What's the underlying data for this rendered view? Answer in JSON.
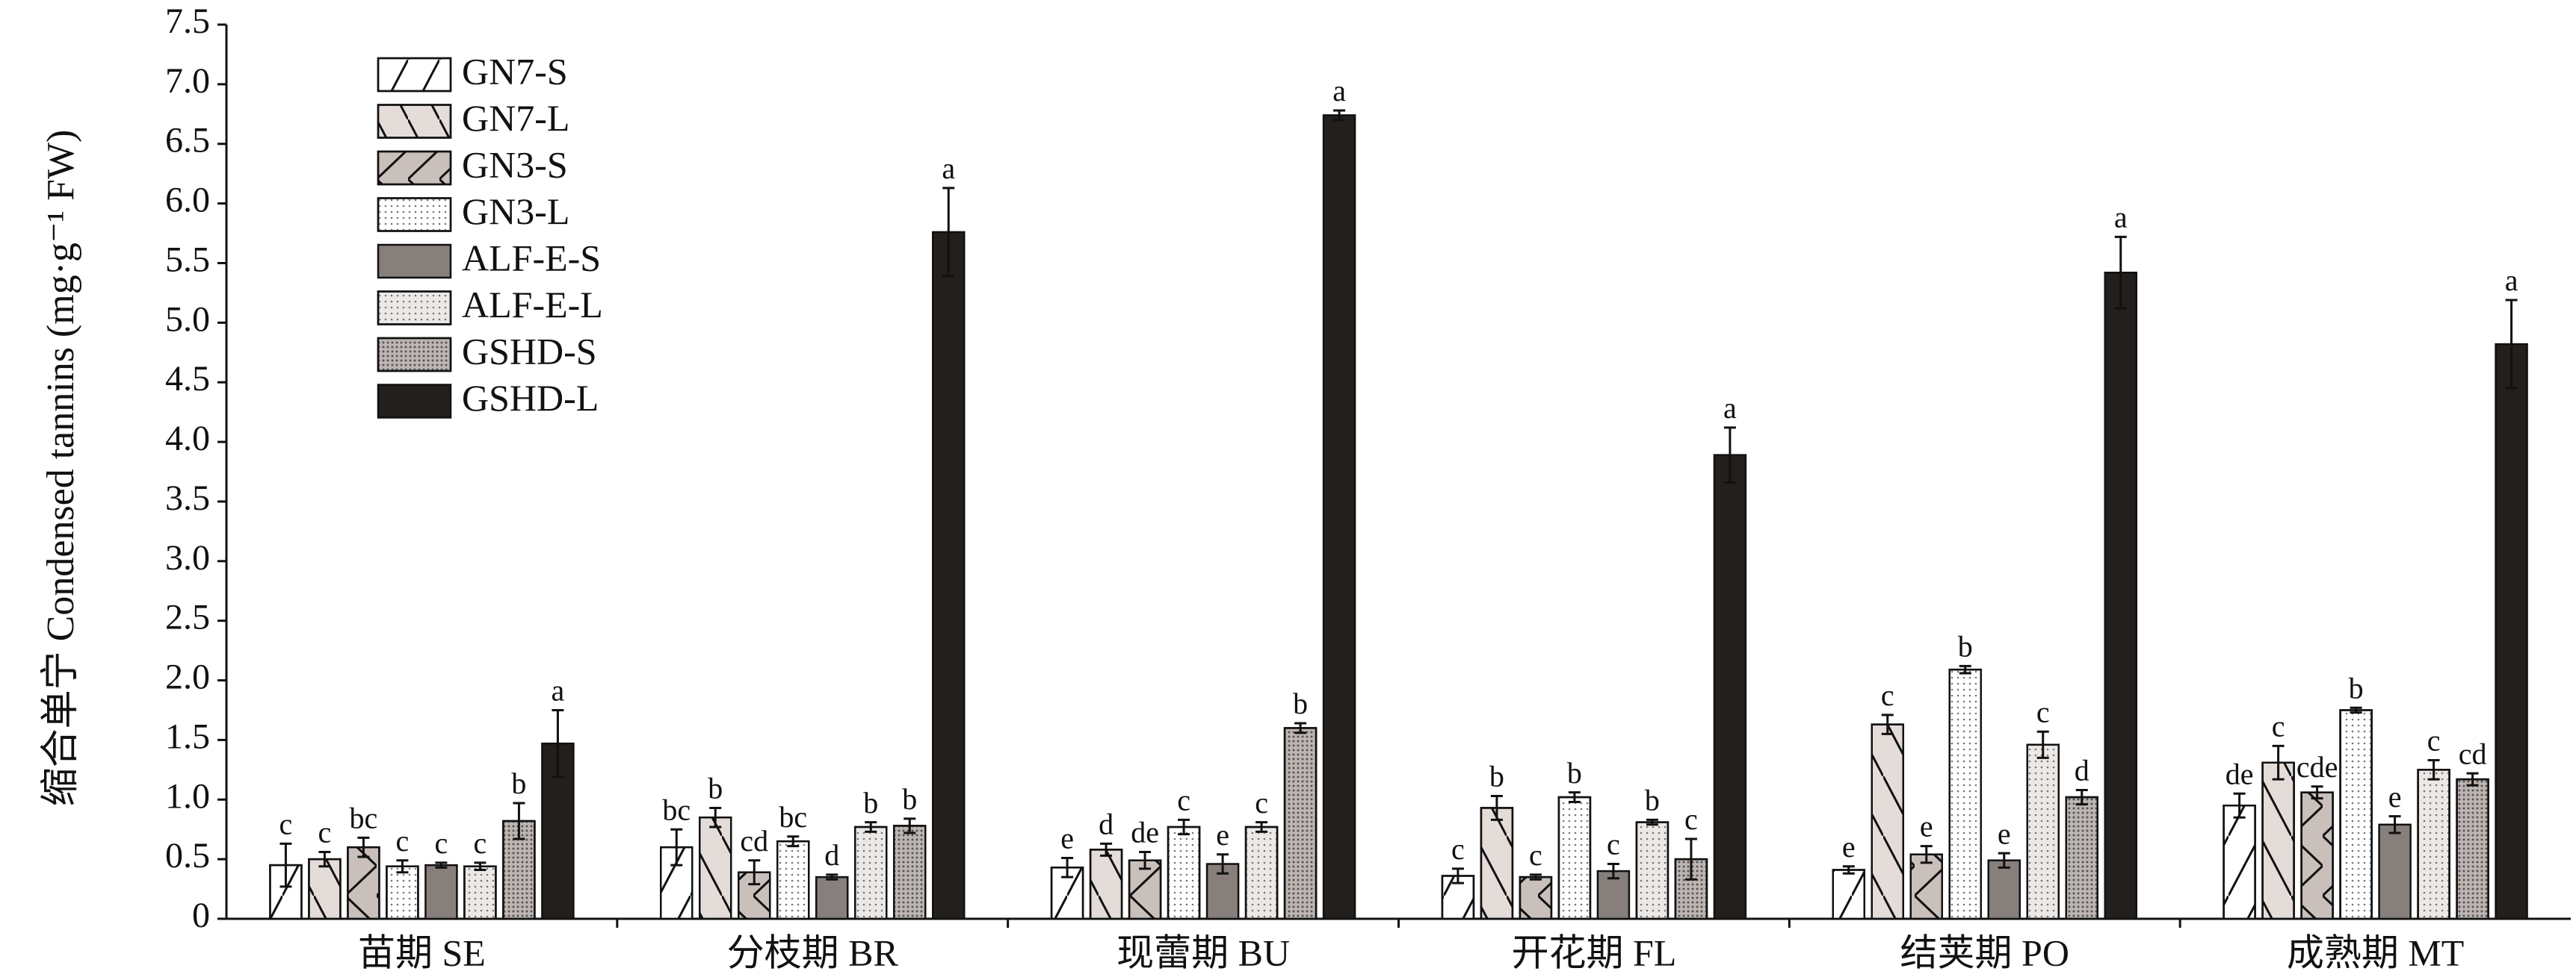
{
  "chart_data": {
    "type": "bar",
    "ylabel": "缩合单宁 Condensed tannins (mg·g⁻¹ FW)",
    "categories": [
      "苗期 SE",
      "分枝期 BR",
      "现蕾期 BU",
      "开花期 FL",
      "结荚期 PO",
      "成熟期 MT"
    ],
    "series": [
      {
        "name": "GN7-S",
        "color": "#ffffff",
        "hatch": "slash",
        "values": [
          0.45,
          0.6,
          0.43,
          0.36,
          0.41,
          0.95
        ],
        "errors": [
          0.18,
          0.15,
          0.08,
          0.06,
          0.03,
          0.1
        ],
        "labels": [
          "c",
          "bc",
          "e",
          "c",
          "e",
          "de"
        ]
      },
      {
        "name": "GN7-L",
        "color": "#e4dcd8",
        "hatch": "backslash",
        "values": [
          0.5,
          0.85,
          0.58,
          0.93,
          1.63,
          1.31
        ],
        "errors": [
          0.06,
          0.08,
          0.05,
          0.1,
          0.08,
          0.14
        ],
        "labels": [
          "c",
          "b",
          "d",
          "b",
          "c",
          "c"
        ]
      },
      {
        "name": "GN3-S",
        "color": "#c9c0bc",
        "hatch": "cross",
        "values": [
          0.6,
          0.39,
          0.49,
          0.35,
          0.54,
          1.06
        ],
        "errors": [
          0.08,
          0.1,
          0.07,
          0.02,
          0.07,
          0.05
        ],
        "labels": [
          "bc",
          "cd",
          "de",
          "c",
          "e",
          "cde"
        ]
      },
      {
        "name": "GN3-L",
        "color": "#ffffff",
        "hatch": "dots-light",
        "values": [
          0.44,
          0.65,
          0.77,
          1.02,
          2.09,
          1.75
        ],
        "errors": [
          0.05,
          0.04,
          0.06,
          0.04,
          0.03,
          0.02
        ],
        "labels": [
          "c",
          "bc",
          "c",
          "b",
          "b",
          "b"
        ]
      },
      {
        "name": "ALF-E-S",
        "color": "#867f7b",
        "values": [
          0.45,
          0.35,
          0.46,
          0.4,
          0.49,
          0.79
        ],
        "errors": [
          0.02,
          0.02,
          0.08,
          0.06,
          0.06,
          0.07
        ],
        "labels": [
          "c",
          "d",
          "e",
          "c",
          "e",
          "e"
        ]
      },
      {
        "name": "ALF-E-L",
        "color": "#ece8e6",
        "hatch": "dots-light",
        "values": [
          0.44,
          0.77,
          0.77,
          0.81,
          1.46,
          1.25
        ],
        "errors": [
          0.03,
          0.04,
          0.04,
          0.02,
          0.11,
          0.08
        ],
        "labels": [
          "c",
          "b",
          "c",
          "b",
          "c",
          "c"
        ]
      },
      {
        "name": "GSHD-S",
        "color": "#bdb5b1",
        "hatch": "dots-dense",
        "values": [
          0.82,
          0.78,
          1.6,
          0.5,
          1.02,
          1.17
        ],
        "errors": [
          0.15,
          0.06,
          0.04,
          0.17,
          0.06,
          0.05
        ],
        "labels": [
          "b",
          "b",
          "b",
          "c",
          "d",
          "cd"
        ]
      },
      {
        "name": "GSHD-L",
        "color": "#231f1c",
        "values": [
          1.47,
          5.76,
          6.74,
          3.89,
          5.42,
          4.82
        ],
        "errors": [
          0.28,
          0.37,
          0.04,
          0.23,
          0.3,
          0.37
        ],
        "labels": [
          "a",
          "a",
          "a",
          "a",
          "a",
          "a"
        ]
      }
    ],
    "ylim": [
      0,
      7.5
    ],
    "yticks": [
      0,
      0.5,
      {
        "value": 1,
        "label": "1.0"
      },
      1.5,
      {
        "value": 2,
        "label": "2.0"
      },
      2.5,
      {
        "value": 3,
        "label": "3.0"
      },
      3.5,
      {
        "value": 4,
        "label": "4.0"
      },
      4.5,
      {
        "value": 5,
        "label": "5.0"
      },
      5.5,
      {
        "value": 6,
        "label": "6.0"
      },
      6.5,
      {
        "value": 7,
        "label": "7.0"
      },
      7.5
    ],
    "grid": false,
    "legend": "upper left"
  }
}
